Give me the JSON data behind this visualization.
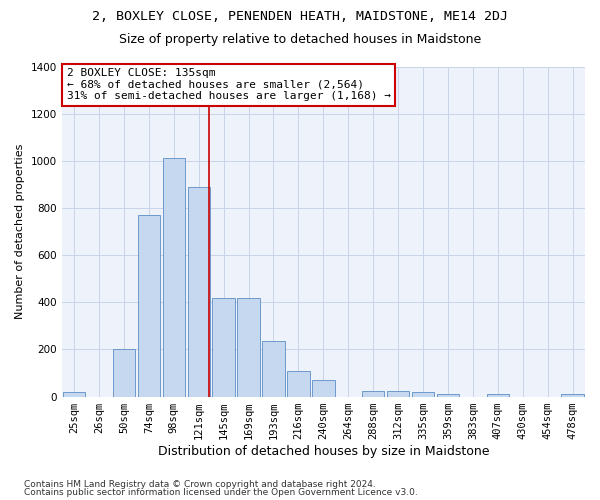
{
  "title": "2, BOXLEY CLOSE, PENENDEN HEATH, MAIDSTONE, ME14 2DJ",
  "subtitle": "Size of property relative to detached houses in Maidstone",
  "xlabel": "Distribution of detached houses by size in Maidstone",
  "ylabel": "Number of detached properties",
  "categories": [
    "25sqm",
    "26sqm",
    "50sqm",
    "74sqm",
    "98sqm",
    "121sqm",
    "145sqm",
    "169sqm",
    "193sqm",
    "216sqm",
    "240sqm",
    "264sqm",
    "288sqm",
    "312sqm",
    "335sqm",
    "359sqm",
    "383sqm",
    "407sqm",
    "430sqm",
    "454sqm",
    "478sqm"
  ],
  "values": [
    20,
    0,
    200,
    770,
    1010,
    890,
    420,
    420,
    235,
    110,
    70,
    0,
    22,
    25,
    20,
    10,
    0,
    10,
    0,
    0,
    10
  ],
  "bar_color": "#c5d8f0",
  "bar_edge_color": "#5b8ec4",
  "grid_color": "#c8d4e8",
  "background_color": "#eef2fb",
  "vline_color": "#cc0000",
  "annotation_text": "2 BOXLEY CLOSE: 135sqm\n← 68% of detached houses are smaller (2,564)\n31% of semi-detached houses are larger (1,168) →",
  "annotation_box_color": "#ffffff",
  "annotation_box_edge": "#cc0000",
  "ylim": [
    0,
    1400
  ],
  "yticks": [
    0,
    200,
    400,
    600,
    800,
    1000,
    1200,
    1400
  ],
  "footnote1": "Contains HM Land Registry data © Crown copyright and database right 2024.",
  "footnote2": "Contains public sector information licensed under the Open Government Licence v3.0.",
  "title_fontsize": 9.5,
  "subtitle_fontsize": 9,
  "xlabel_fontsize": 9,
  "ylabel_fontsize": 8,
  "tick_fontsize": 7.5,
  "annotation_fontsize": 8,
  "footnote_fontsize": 6.5
}
